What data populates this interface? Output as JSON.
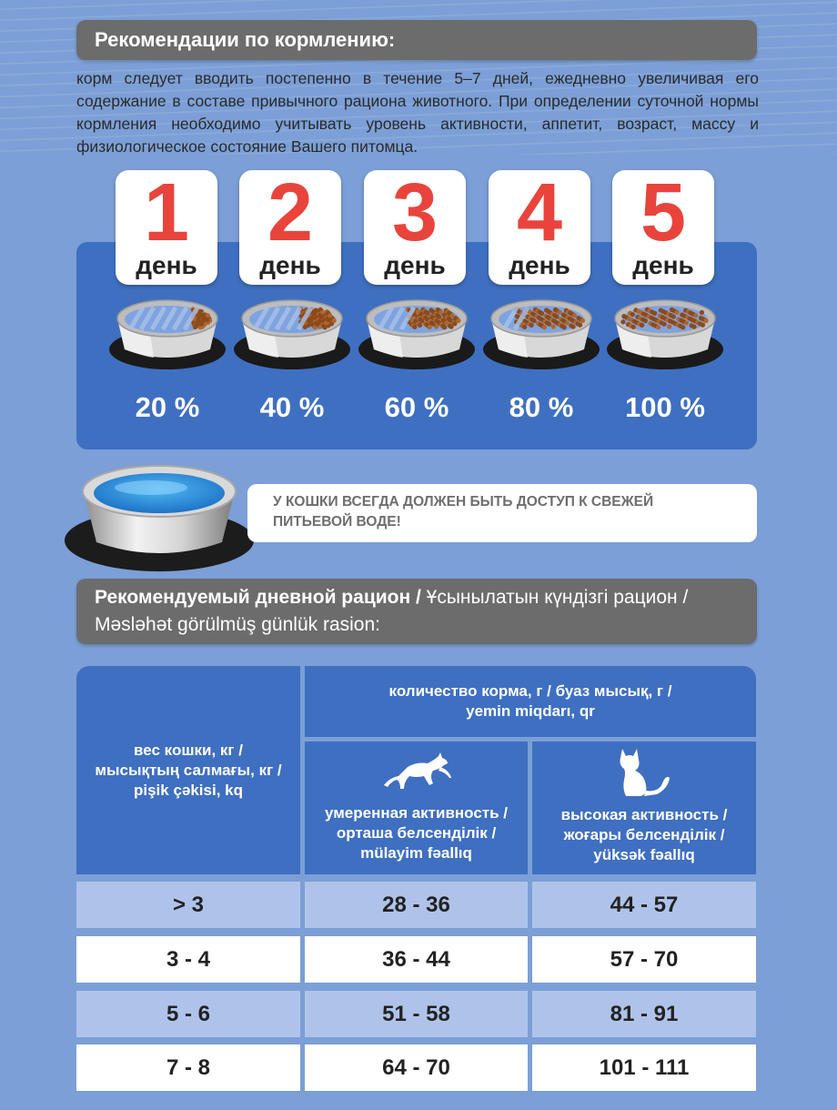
{
  "feeding": {
    "title": "Рекомендации по кормлению:",
    "intro": "корм следует вводить постепенно в течение 5–7 дней, ежедневно увеличивая его содержание в составе привычного рациона животного. При определении суточной нормы кормления необходимо учитывать уровень активности, аппетит, возраст, массу и физиологическое состояние Вашего питомца.",
    "days": [
      {
        "num": "1",
        "word": "день",
        "percent": "20 %",
        "fill": 0.2
      },
      {
        "num": "2",
        "word": "день",
        "percent": "40 %",
        "fill": 0.4
      },
      {
        "num": "3",
        "word": "день",
        "percent": "60 %",
        "fill": 0.6
      },
      {
        "num": "4",
        "word": "день",
        "percent": "80 %",
        "fill": 0.8
      },
      {
        "num": "5",
        "word": "день",
        "percent": "100 %",
        "fill": 1.0
      }
    ],
    "water_note_line1": "У КОШКИ ВСЕГДА ДОЛЖЕН БЫТЬ ДОСТУП К СВЕЖЕЙ",
    "water_note_line2": "ПИТЬЕВОЙ ВОДЕ!"
  },
  "ration": {
    "title_bold": "Рекомендуемый дневной рацион /",
    "title_rest": " Ұсынылатын күндізгі рацион /",
    "title_line2": "Məsləhət görülmüş günlük rasion:",
    "weight_header": [
      "вес кошки, кг /",
      "мысықтың салмағы, кг /",
      "pişik çəkisi, kq"
    ],
    "amount_header": [
      "количество корма, г / буаз мысық, г /",
      "yemin miqdarı, qr"
    ],
    "moderate_header": [
      "умеренная активность /",
      "орташа белсенділік /",
      "mülayim fəallıq"
    ],
    "high_header": [
      "высокая активность  /",
      "жоғары белсенділік /",
      "yüksək fəallıq"
    ],
    "rows": [
      {
        "weight": "> 3",
        "moderate": "28 - 36",
        "high": "44 - 57"
      },
      {
        "weight": "3 - 4",
        "moderate": "36 - 44",
        "high": "57 - 70"
      },
      {
        "weight": "5 - 6",
        "moderate": "51 - 58",
        "high": "81 - 91"
      },
      {
        "weight": "7 - 8",
        "moderate": "64 - 70",
        "high": "101 - 111"
      }
    ]
  },
  "colors": {
    "background": "#7b9fd6",
    "panel_blue": "#3f6fc1",
    "header_grey": "#6c6c6c",
    "day_number_red": "#e8443c",
    "row_light": "#afc3ea"
  },
  "icons": {
    "moderate": "running-cat-icon",
    "high": "sitting-cat-icon"
  }
}
